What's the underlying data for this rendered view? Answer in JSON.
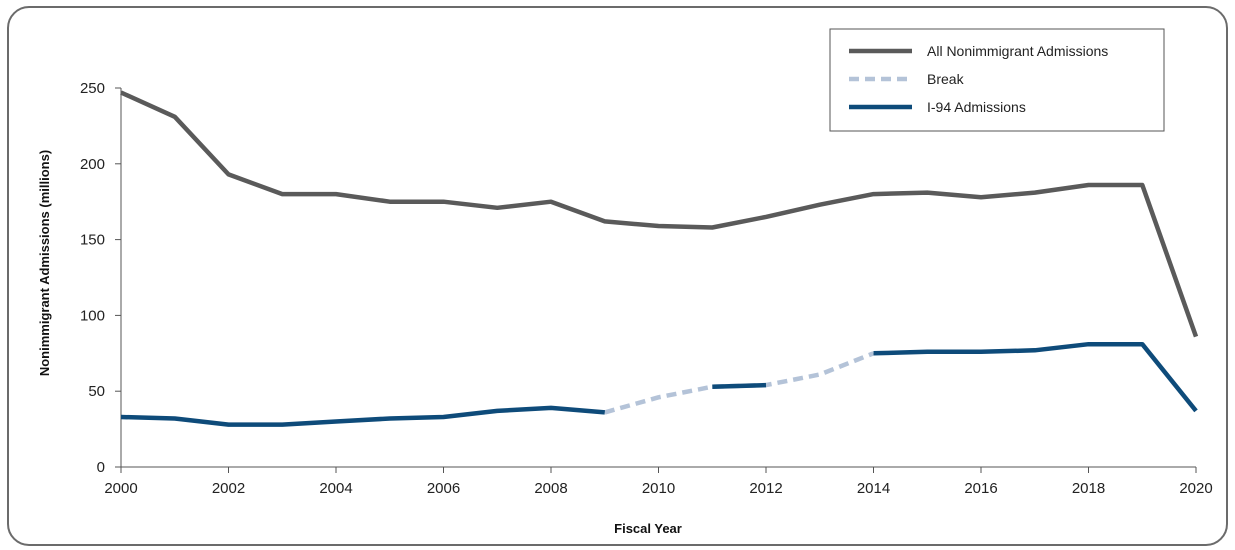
{
  "chart_data": {
    "type": "line",
    "title": "",
    "xlabel": "Fiscal Year",
    "ylabel": "Nonimmigrant Admissions (millions)",
    "xlim": [
      2000,
      2020
    ],
    "ylim": [
      0,
      250
    ],
    "x_ticks": [
      2000,
      2002,
      2004,
      2006,
      2008,
      2010,
      2012,
      2014,
      2016,
      2018,
      2020
    ],
    "y_ticks": [
      0,
      50,
      100,
      150,
      200,
      250
    ],
    "grid": false,
    "legend_position": "top-right",
    "series": [
      {
        "name": "All Nonimmigrant Admissions",
        "color": "#5a5a5a",
        "style": "solid",
        "points": [
          [
            2000,
            247
          ],
          [
            2001,
            231
          ],
          [
            2002,
            193
          ],
          [
            2003,
            180
          ],
          [
            2004,
            180
          ],
          [
            2005,
            175
          ],
          [
            2006,
            175
          ],
          [
            2007,
            171
          ],
          [
            2008,
            175
          ],
          [
            2009,
            162
          ],
          [
            2010,
            159
          ],
          [
            2011,
            158
          ],
          [
            2012,
            165
          ],
          [
            2013,
            173
          ],
          [
            2014,
            180
          ],
          [
            2015,
            181
          ],
          [
            2016,
            178
          ],
          [
            2017,
            181
          ],
          [
            2018,
            186
          ],
          [
            2019,
            186
          ],
          [
            2020,
            86
          ]
        ]
      },
      {
        "name": "Break",
        "color": "#b4c3d8",
        "style": "dashed",
        "points": [
          [
            2009,
            36
          ],
          [
            2010,
            46
          ],
          [
            2011,
            53
          ],
          [
            2012,
            54
          ],
          [
            2013,
            61
          ],
          [
            2014,
            75
          ]
        ]
      },
      {
        "name": "I-94 Admissions",
        "color": "#0e4b7a",
        "style": "solid",
        "segments": [
          [
            [
              2000,
              33
            ],
            [
              2001,
              32
            ],
            [
              2002,
              28
            ],
            [
              2003,
              28
            ],
            [
              2004,
              30
            ],
            [
              2005,
              32
            ],
            [
              2006,
              33
            ],
            [
              2007,
              37
            ],
            [
              2008,
              39
            ],
            [
              2009,
              36
            ]
          ],
          [
            [
              2011,
              53
            ],
            [
              2012,
              54
            ]
          ],
          [
            [
              2014,
              75
            ],
            [
              2015,
              76
            ],
            [
              2016,
              76
            ],
            [
              2017,
              77
            ],
            [
              2018,
              81
            ],
            [
              2019,
              81
            ],
            [
              2020,
              37
            ]
          ]
        ]
      }
    ]
  }
}
